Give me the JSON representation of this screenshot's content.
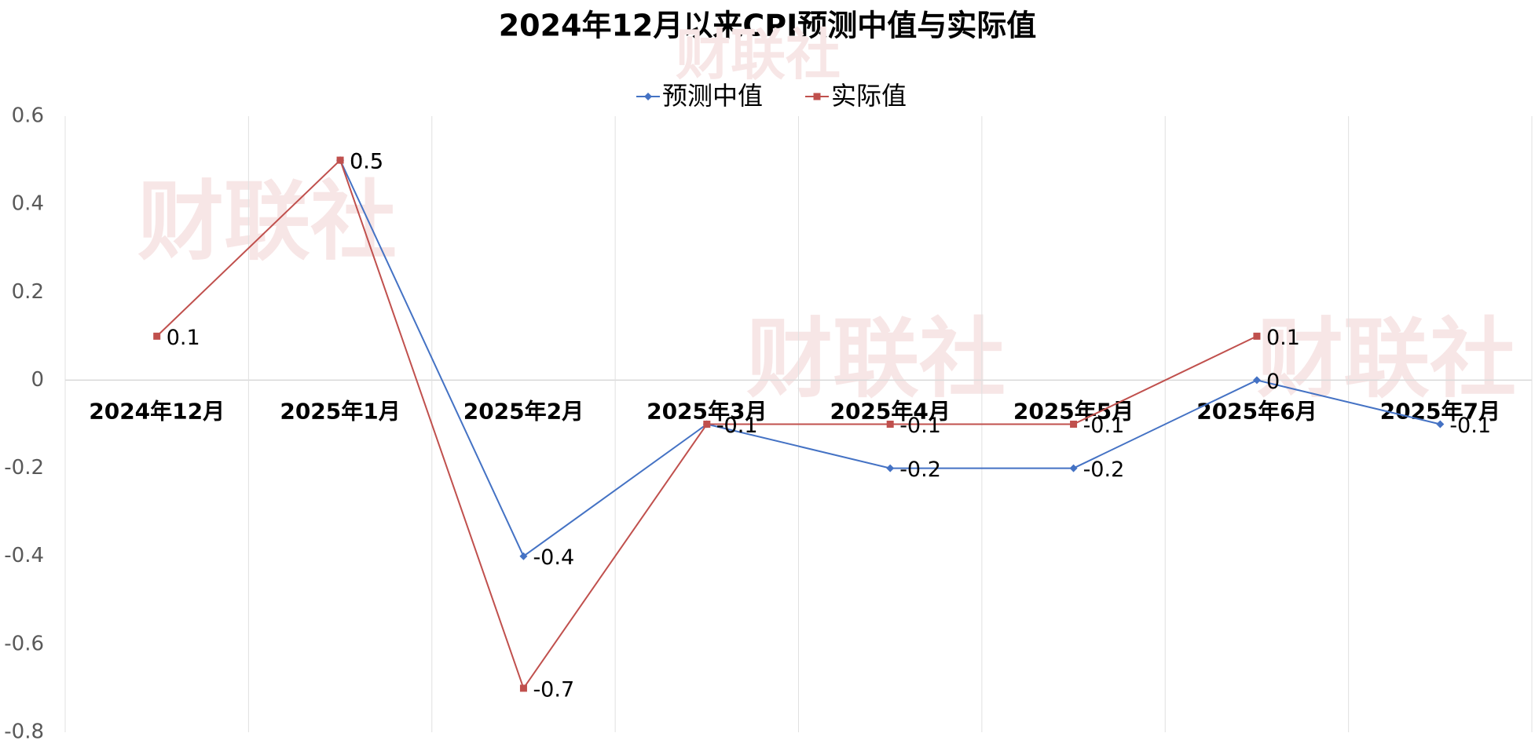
{
  "chart_data": {
    "type": "line",
    "title": "2024年12月以来CPI预测中值与实际值",
    "watermark": "财联社",
    "categories": [
      "2024年12月",
      "2025年1月",
      "2025年2月",
      "2025年3月",
      "2025年4月",
      "2025年5月",
      "2025年6月",
      "2025年7月"
    ],
    "series": [
      {
        "name": "预测中值",
        "color": "#4472c4",
        "marker": "diamond",
        "values": [
          null,
          0.5,
          -0.4,
          -0.1,
          -0.2,
          -0.2,
          0,
          -0.1
        ]
      },
      {
        "name": "实际值",
        "color": "#c0504d",
        "marker": "square",
        "values": [
          0.1,
          0.5,
          -0.7,
          -0.1,
          -0.1,
          -0.1,
          0.1,
          null
        ]
      }
    ],
    "ylim": [
      -0.8,
      0.6
    ],
    "yticks": [
      -0.8,
      -0.6,
      -0.4,
      -0.2,
      0,
      0.2,
      0.4,
      0.6
    ],
    "grid": true,
    "legend": "top"
  }
}
